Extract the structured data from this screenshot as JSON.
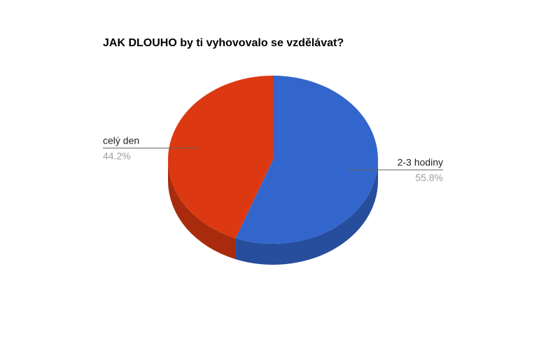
{
  "chart_data": {
    "type": "pie",
    "title": "JAK DLOUHO by ti vyhovovalo se vzdělávat?",
    "categories": [
      "2-3 hodiny",
      "celý den"
    ],
    "values": [
      55.8,
      44.2
    ],
    "value_labels": [
      "55.8%",
      "44.2%"
    ],
    "colors": [
      "#3366cc",
      "#dc3912"
    ],
    "side_colors": [
      "#274e9c",
      "#a82b0e"
    ],
    "style": "3d",
    "legend": "labeled"
  }
}
